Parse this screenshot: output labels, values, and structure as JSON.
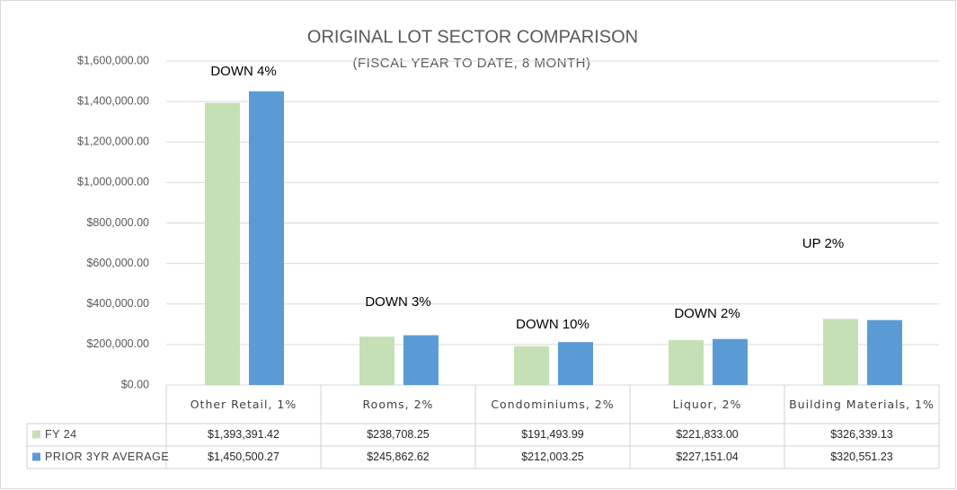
{
  "chart_data": {
    "type": "bar",
    "title": "ORIGINAL LOT SECTOR COMPARISON",
    "subtitle": "(FISCAL YEAR TO DATE, 8  MONTH)",
    "categories": [
      "Other Retail, 1%",
      "Rooms, 2%",
      "Condominiums, 2%",
      "Liquor, 2%",
      "Building Materials, 1%"
    ],
    "series": [
      {
        "name": "FY 24",
        "color": "#c5e0b4",
        "values": [
          1393391.42,
          238708.25,
          191493.99,
          221833.0,
          326339.13
        ],
        "value_labels": [
          "$1,393,391.42",
          "$238,708.25",
          "$191,493.99",
          "$221,833.00",
          "$326,339.13"
        ]
      },
      {
        "name": "PRIOR 3YR AVERAGE",
        "color": "#5b9bd5",
        "values": [
          1450500.27,
          245862.62,
          212003.25,
          227151.04,
          320551.23
        ],
        "value_labels": [
          "$1,450,500.27",
          "$245,862.62",
          "$212,003.25",
          "$227,151.04",
          "$320,551.23"
        ]
      }
    ],
    "annotations": [
      "DOWN 4%",
      "DOWN 3%",
      "DOWN 10%",
      "DOWN 2%",
      "UP 2%"
    ],
    "ylim": [
      0,
      1600000
    ],
    "yticks": [
      {
        "value": 0,
        "label": "$0.00"
      },
      {
        "value": 200000,
        "label": "$200,000.00"
      },
      {
        "value": 400000,
        "label": "$400,000.00"
      },
      {
        "value": 600000,
        "label": "$600,000.00"
      },
      {
        "value": 800000,
        "label": "$800,000.00"
      },
      {
        "value": 1000000,
        "label": "$1,000,000.00"
      },
      {
        "value": 1200000,
        "label": "$1,200,000.00"
      },
      {
        "value": 1400000,
        "label": "$1,400,000.00"
      },
      {
        "value": 1600000,
        "label": "$1,600,000.00"
      }
    ],
    "grid": true
  }
}
